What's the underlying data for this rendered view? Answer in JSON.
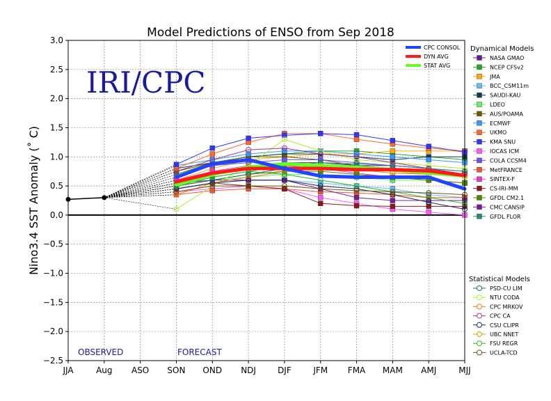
{
  "chart_data": {
    "type": "line",
    "title": "Model Predictions of ENSO from Sep 2018",
    "ylabel": "Nino3.4 SST Anomaly (˚ C)",
    "xlabel": "",
    "watermark": "IRI/CPC",
    "observed_label": "OBSERVED",
    "forecast_label": "FORECAST",
    "categories": [
      "JJA",
      "Aug",
      "ASO",
      "SON",
      "OND",
      "NDJ",
      "DJF",
      "JFM",
      "FMA",
      "MAM",
      "AMJ",
      "MJJ"
    ],
    "ylim": [
      -2.5,
      3.0
    ],
    "yticks": [
      "3.0",
      "2.5",
      "2.0",
      "1.5",
      "1.0",
      "0.5",
      "0.0",
      "−0.5",
      "−1.0",
      "−1.5",
      "−2.0",
      "−2.5"
    ],
    "ytick_values": [
      3.0,
      2.5,
      2.0,
      1.5,
      1.0,
      0.5,
      0.0,
      -0.5,
      -1.0,
      -1.5,
      -2.0,
      -2.5
    ],
    "grid": true,
    "observed": {
      "x": [
        "JJA",
        "Aug"
      ],
      "values": [
        0.27,
        0.3
      ]
    },
    "average_legend": [
      {
        "name": "CPC CONSOL",
        "color": "#2244ff"
      },
      {
        "name": "DYN AVG",
        "color": "#ff1a1a"
      },
      {
        "name": "STAT AVG",
        "color": "#66ff22"
      }
    ],
    "averages": [
      {
        "name": "STAT AVG",
        "color": "#66ff22",
        "values": [
          0.52,
          0.7,
          0.82,
          0.88,
          0.85,
          0.82,
          0.78,
          0.73,
          0.67
        ]
      },
      {
        "name": "DYN AVG",
        "color": "#ff1a1a",
        "values": [
          0.57,
          0.72,
          0.8,
          0.8,
          0.8,
          0.78,
          0.78,
          0.76,
          0.68
        ]
      },
      {
        "name": "CPC CONSOL",
        "color": "#2244ff",
        "values": [
          0.65,
          0.88,
          0.95,
          0.8,
          0.67,
          0.65,
          0.65,
          0.65,
          0.45
        ]
      }
    ],
    "dynamical_heading": "Dynamical Models",
    "statistical_heading": "Statistical Models",
    "dynamical_models": [
      {
        "name": "NASA GMAO",
        "color": "#5a1a9a",
        "values": [
          0.55,
          0.7,
          0.8,
          0.9,
          0.9,
          0.85,
          0.85,
          0.8,
          0.7
        ]
      },
      {
        "name": "NCEP CFSv2",
        "color": "#22a822",
        "values": [
          0.7,
          0.9,
          1.0,
          1.05,
          1.1,
          1.1,
          1.05,
          1.0,
          0.95
        ]
      },
      {
        "name": "JMA",
        "color": "#ffaa00",
        "values": [
          0.6,
          0.8,
          0.95,
          1.0,
          1.05,
          1.05,
          1.1,
          1.1,
          1.1
        ]
      },
      {
        "name": "BCC_CSM11m",
        "color": "#66b8ff",
        "values": [
          0.45,
          0.55,
          0.6,
          0.6,
          0.55,
          0.5,
          0.45,
          0.35,
          0.3
        ]
      },
      {
        "name": "SAUDI-KAU",
        "color": "#143d4a",
        "values": [
          0.8,
          0.9,
          1.0,
          1.05,
          1.05,
          1.0,
          0.95,
          1.0,
          1.0
        ]
      },
      {
        "name": "LDEO",
        "color": "#66ee66",
        "values": [
          0.5,
          0.6,
          0.65,
          0.7,
          0.7,
          0.65,
          0.6,
          0.6,
          0.55
        ]
      },
      {
        "name": "AUS/POAMA",
        "color": "#6b5a00",
        "values": [
          0.75,
          0.9,
          1.0,
          1.0,
          0.95,
          0.85,
          0.8,
          0.75,
          0.7
        ]
      },
      {
        "name": "ECMWF",
        "color": "#3399ff",
        "values": [
          0.85,
          0.95,
          1.05,
          1.1,
          1.1,
          1.05,
          1.0,
          0.95,
          0.9
        ]
      },
      {
        "name": "UKMO",
        "color": "#ff6633",
        "values": [
          0.8,
          1.05,
          1.25,
          1.4,
          1.4,
          1.3,
          1.22,
          1.15,
          1.1
        ]
      },
      {
        "name": "KMA SNU",
        "color": "#3333ff",
        "values": [
          0.87,
          1.15,
          1.32,
          1.37,
          1.4,
          1.38,
          1.28,
          1.18,
          1.08
        ]
      },
      {
        "name": "IOCAS ICM",
        "color": "#ff55ff",
        "values": [
          0.4,
          0.45,
          0.5,
          0.45,
          0.3,
          0.2,
          0.1,
          0.05,
          0.0
        ]
      },
      {
        "name": "COLA CCSM4",
        "color": "#6655ee",
        "values": [
          0.65,
          0.85,
          0.9,
          0.95,
          0.95,
          0.9,
          0.85,
          0.8,
          0.75
        ]
      },
      {
        "name": "MetFRANCE",
        "color": "#ee5533",
        "values": [
          0.35,
          0.42,
          0.45,
          0.45,
          0.4,
          0.38,
          0.35,
          0.3,
          0.3
        ]
      },
      {
        "name": "SINTEX-F",
        "color": "#ee33cc",
        "values": [
          0.6,
          0.75,
          0.85,
          0.85,
          0.8,
          0.72,
          0.65,
          0.6,
          0.55
        ]
      },
      {
        "name": "CS-IRI-MM",
        "color": "#8a1a1a",
        "values": [
          0.45,
          0.55,
          0.5,
          0.45,
          0.2,
          0.16,
          0.15,
          0.15,
          0.15
        ]
      },
      {
        "name": "GFDL CM2.1",
        "color": "#4a8a00",
        "values": [
          0.5,
          0.6,
          0.7,
          0.75,
          0.75,
          0.7,
          0.65,
          0.6,
          0.55
        ]
      },
      {
        "name": "CMC CANSIP",
        "color": "#7a1a9a",
        "values": [
          0.55,
          0.6,
          0.6,
          0.6,
          0.45,
          0.3,
          0.25,
          0.25,
          0.25
        ]
      },
      {
        "name": "GFDL FLOR",
        "color": "#2a8a7a",
        "values": [
          0.5,
          0.65,
          0.75,
          0.85,
          0.9,
          0.88,
          0.85,
          0.8,
          0.75
        ]
      }
    ],
    "statistical_models": [
      {
        "name": "PSD-CU LIM",
        "color": "#2a6a6a",
        "values": [
          0.5,
          0.6,
          0.7,
          0.8,
          0.85,
          0.85,
          0.8,
          0.75,
          0.7
        ]
      },
      {
        "name": "NTU CODA",
        "color": "#aaee22",
        "values": [
          0.1,
          0.5,
          0.85,
          1.3,
          1.1,
          0.95,
          0.9,
          0.85,
          0.8
        ]
      },
      {
        "name": "CPC MRKOV",
        "color": "#ee7722",
        "values": [
          0.35,
          0.55,
          0.65,
          0.75,
          0.8,
          0.78,
          0.72,
          0.7,
          0.68
        ]
      },
      {
        "name": "CPC CA",
        "color": "#993399",
        "values": [
          0.75,
          0.95,
          1.12,
          1.15,
          1.05,
          1.0,
          0.9,
          0.8,
          0.7
        ]
      },
      {
        "name": "CSU CLIPR",
        "color": "#1a2a55",
        "values": [
          0.45,
          0.55,
          0.6,
          0.6,
          0.5,
          0.45,
          0.35,
          0.22,
          0.1
        ]
      },
      {
        "name": "UBC NNET",
        "color": "#bbaa00",
        "values": [
          0.55,
          0.7,
          0.8,
          0.85,
          0.85,
          0.8,
          0.75,
          0.7,
          0.65
        ]
      },
      {
        "name": "FSU REGR",
        "color": "#22bb22",
        "values": [
          0.5,
          0.65,
          0.75,
          0.7,
          0.6,
          0.5,
          0.4,
          0.3,
          0.2
        ]
      },
      {
        "name": "UCLA-TCD",
        "color": "#665511",
        "values": [
          0.4,
          0.5,
          0.5,
          0.5,
          0.45,
          0.42,
          0.4,
          0.38,
          0.35
        ]
      }
    ]
  }
}
